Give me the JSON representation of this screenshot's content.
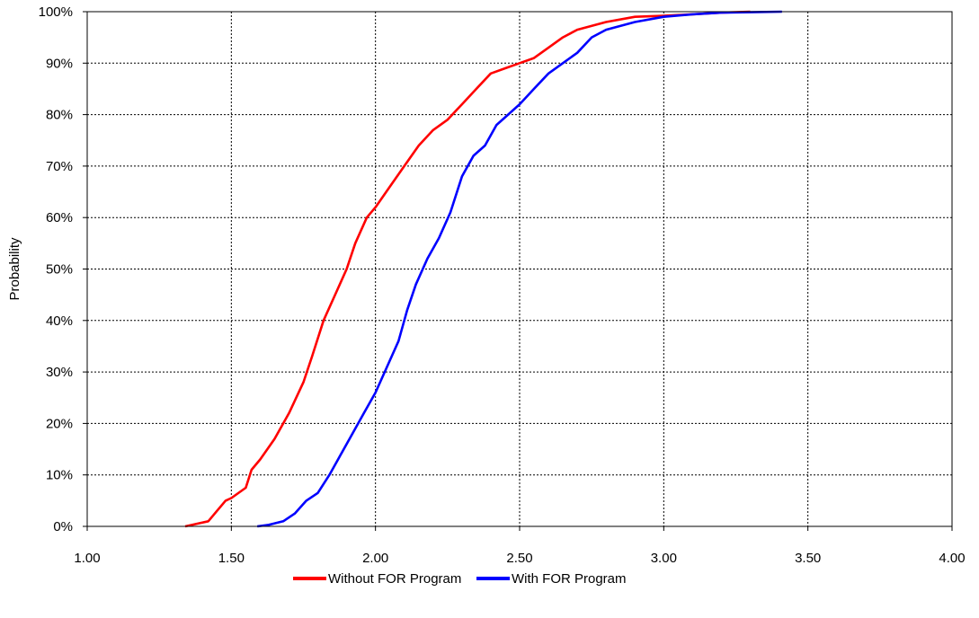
{
  "chart_data": {
    "type": "line",
    "title": "",
    "xlabel": "",
    "ylabel": "Probability",
    "xlim": [
      1.0,
      4.0
    ],
    "ylim": [
      0,
      1
    ],
    "x_ticks": [
      "1.00",
      "1.50",
      "2.00",
      "2.50",
      "3.00",
      "3.50",
      "4.00"
    ],
    "y_ticks": [
      "0%",
      "10%",
      "20%",
      "30%",
      "40%",
      "50%",
      "60%",
      "70%",
      "80%",
      "90%",
      "100%"
    ],
    "grid": true,
    "legend_position": "bottom",
    "series": [
      {
        "name": "Without FOR Program",
        "color": "#ff0000",
        "points": [
          [
            1.34,
            0.0
          ],
          [
            1.38,
            0.005
          ],
          [
            1.42,
            0.01
          ],
          [
            1.45,
            0.03
          ],
          [
            1.48,
            0.05
          ],
          [
            1.5,
            0.055
          ],
          [
            1.55,
            0.075
          ],
          [
            1.57,
            0.11
          ],
          [
            1.6,
            0.13
          ],
          [
            1.65,
            0.17
          ],
          [
            1.7,
            0.22
          ],
          [
            1.75,
            0.28
          ],
          [
            1.78,
            0.33
          ],
          [
            1.82,
            0.4
          ],
          [
            1.86,
            0.45
          ],
          [
            1.9,
            0.5
          ],
          [
            1.93,
            0.55
          ],
          [
            1.97,
            0.6
          ],
          [
            2.0,
            0.62
          ],
          [
            2.05,
            0.66
          ],
          [
            2.1,
            0.7
          ],
          [
            2.15,
            0.74
          ],
          [
            2.2,
            0.77
          ],
          [
            2.25,
            0.79
          ],
          [
            2.3,
            0.82
          ],
          [
            2.35,
            0.85
          ],
          [
            2.4,
            0.88
          ],
          [
            2.45,
            0.89
          ],
          [
            2.5,
            0.9
          ],
          [
            2.55,
            0.91
          ],
          [
            2.6,
            0.93
          ],
          [
            2.65,
            0.95
          ],
          [
            2.7,
            0.965
          ],
          [
            2.8,
            0.98
          ],
          [
            2.9,
            0.99
          ],
          [
            3.0,
            0.992
          ],
          [
            3.1,
            0.995
          ],
          [
            3.2,
            0.998
          ],
          [
            3.3,
            1.0
          ]
        ]
      },
      {
        "name": "With FOR Program",
        "color": "#0000ff",
        "points": [
          [
            1.59,
            0.0
          ],
          [
            1.63,
            0.003
          ],
          [
            1.68,
            0.01
          ],
          [
            1.72,
            0.025
          ],
          [
            1.76,
            0.05
          ],
          [
            1.8,
            0.065
          ],
          [
            1.84,
            0.1
          ],
          [
            1.88,
            0.14
          ],
          [
            1.92,
            0.18
          ],
          [
            1.96,
            0.22
          ],
          [
            2.0,
            0.26
          ],
          [
            2.04,
            0.31
          ],
          [
            2.08,
            0.36
          ],
          [
            2.11,
            0.42
          ],
          [
            2.14,
            0.47
          ],
          [
            2.18,
            0.52
          ],
          [
            2.22,
            0.56
          ],
          [
            2.26,
            0.61
          ],
          [
            2.3,
            0.68
          ],
          [
            2.34,
            0.72
          ],
          [
            2.38,
            0.74
          ],
          [
            2.42,
            0.78
          ],
          [
            2.46,
            0.8
          ],
          [
            2.5,
            0.82
          ],
          [
            2.55,
            0.85
          ],
          [
            2.6,
            0.88
          ],
          [
            2.65,
            0.9
          ],
          [
            2.7,
            0.92
          ],
          [
            2.75,
            0.95
          ],
          [
            2.8,
            0.965
          ],
          [
            2.9,
            0.98
          ],
          [
            3.0,
            0.99
          ],
          [
            3.1,
            0.995
          ],
          [
            3.2,
            0.998
          ],
          [
            3.3,
            0.999
          ],
          [
            3.41,
            1.0
          ]
        ]
      }
    ]
  }
}
